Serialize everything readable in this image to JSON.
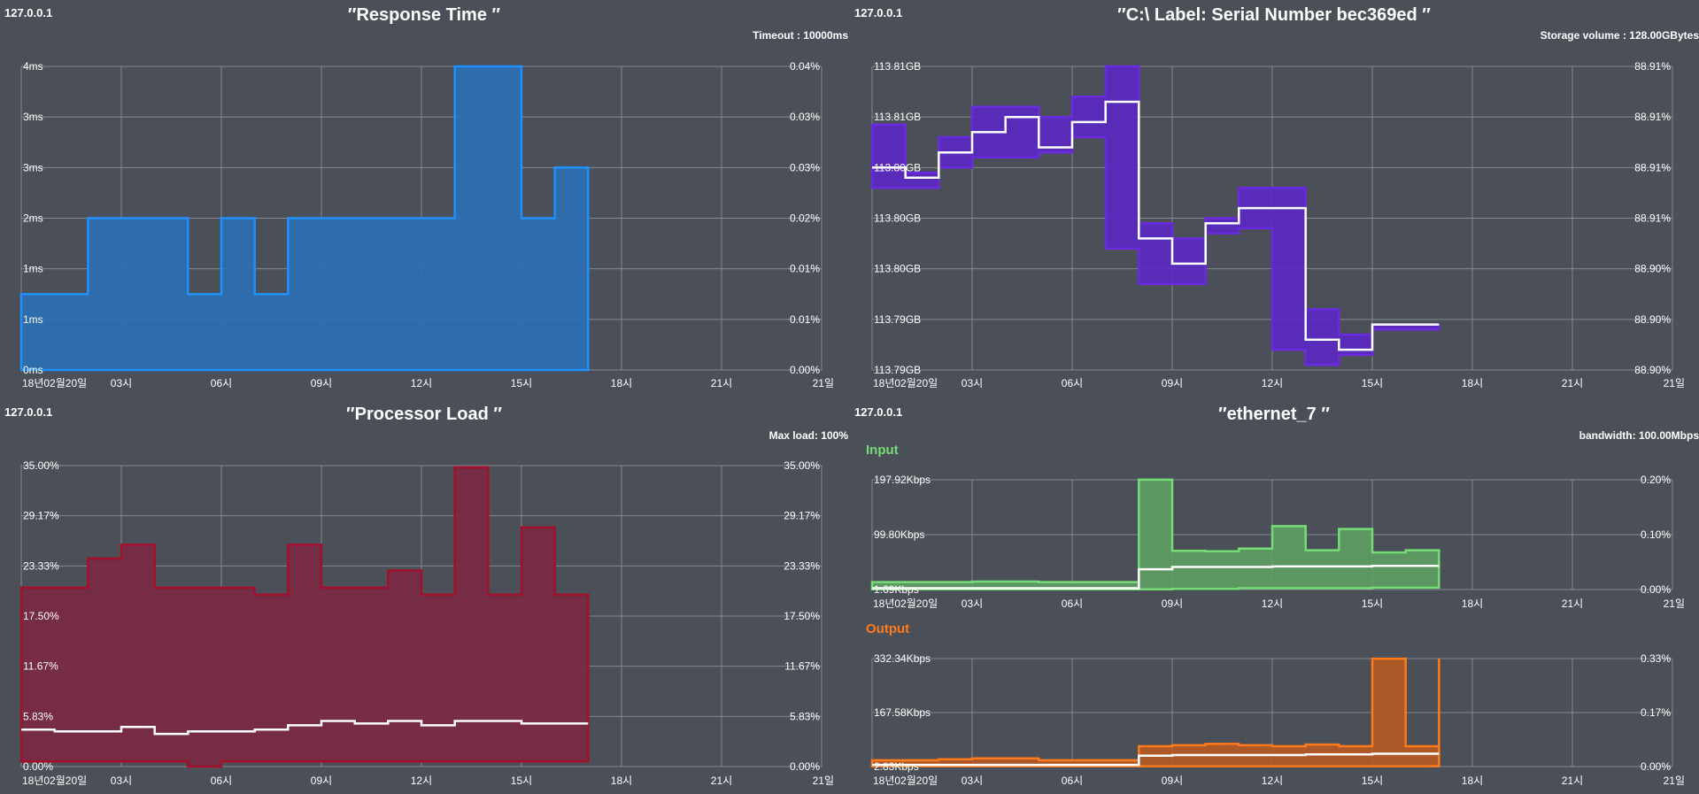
{
  "panels": [
    {
      "id": "response-time",
      "host": "127.0.0.1",
      "title": "″Response Time ″",
      "info": "Timeout : 10000ms",
      "chart_data": {
        "type": "area",
        "step": true,
        "x_tick_labels": [
          "18년02월20일",
          "03시",
          "06시",
          "09시",
          "12시",
          "15시",
          "18시",
          "21시",
          "21일"
        ],
        "xlim": [
          0,
          24
        ],
        "y_tick_labels": [
          "0ms",
          "1ms",
          "1ms",
          "2ms",
          "3ms",
          "3ms",
          "4ms"
        ],
        "ylim": [
          0,
          6
        ],
        "y2_tick_labels": [
          "0.00%",
          "0.01%",
          "0.01%",
          "0.02%",
          "0.03%",
          "0.03%",
          "0.04%"
        ],
        "colors": {
          "line": "#1e90ff",
          "fill": "#2c6fb5"
        },
        "series": [
          {
            "role": "range",
            "x": [
              0,
              2,
              4,
              5,
              6,
              7,
              8,
              9,
              10,
              11,
              12,
              13,
              14,
              15,
              16,
              17
            ],
            "upper": [
              1.5,
              3,
              3,
              1.5,
              3,
              1.5,
              3,
              3,
              3,
              3,
              3,
              6,
              6,
              3,
              4,
              3
            ],
            "lower": [
              0,
              0,
              0,
              0,
              0,
              0,
              0,
              0,
              0,
              0,
              0,
              0,
              0,
              0,
              0,
              0
            ]
          }
        ]
      }
    },
    {
      "id": "disk",
      "host": "127.0.0.1",
      "title": "″C:\\ Label: Serial Number bec369ed ″",
      "info": "Storage volume : 128.00GBytes",
      "chart_data": {
        "type": "area",
        "step": true,
        "x_tick_labels": [
          "18년02월20일",
          "03시",
          "06시",
          "09시",
          "12시",
          "15시",
          "18시",
          "21시",
          "21일"
        ],
        "xlim": [
          0,
          24
        ],
        "y_tick_labels": [
          "113.79GB",
          "113.79GB",
          "113.80GB",
          "113.80GB",
          "113.80GB",
          "113.81GB",
          "113.81GB"
        ],
        "ylim": [
          0,
          6
        ],
        "y2_tick_labels": [
          "88.90%",
          "88.90%",
          "88.90%",
          "88.91%",
          "88.91%",
          "88.91%",
          "88.91%"
        ],
        "colors": {
          "line": "#6a2be0",
          "fill": "#5a27c4",
          "avg": "#ffffff"
        },
        "series": [
          {
            "role": "range",
            "x": [
              0,
              1,
              2,
              3,
              4,
              5,
              6,
              7,
              8,
              9,
              10,
              11,
              12,
              13,
              14,
              15,
              16,
              17
            ],
            "upper": [
              4.85,
              3.9,
              4.6,
              5.2,
              5.2,
              5.0,
              5.4,
              6.0,
              2.9,
              2.6,
              3.0,
              3.6,
              3.6,
              1.2,
              0.7,
              0.9,
              0.9,
              0.9
            ],
            "lower": [
              3.6,
              3.6,
              4.0,
              4.2,
              4.2,
              4.3,
              4.6,
              2.4,
              1.7,
              1.7,
              2.7,
              2.8,
              0.4,
              0.1,
              0.3,
              0.8,
              0.8,
              0.8
            ]
          },
          {
            "role": "average",
            "x": [
              0,
              1,
              2,
              3,
              4,
              5,
              6,
              7,
              8,
              9,
              10,
              11,
              12,
              13,
              14,
              15,
              16,
              17
            ],
            "values": [
              4.0,
              3.8,
              4.3,
              4.7,
              5.0,
              4.4,
              4.9,
              5.3,
              2.6,
              2.1,
              2.9,
              3.2,
              3.2,
              0.6,
              0.4,
              0.9,
              0.9,
              0.9
            ]
          }
        ]
      }
    },
    {
      "id": "processor-load",
      "host": "127.0.0.1",
      "title": "″Processor Load ″",
      "info": "Max load: 100%",
      "chart_data": {
        "type": "area",
        "step": true,
        "x_tick_labels": [
          "18년02월20일",
          "03시",
          "06시",
          "09시",
          "12시",
          "15시",
          "18시",
          "21시",
          "21일"
        ],
        "xlim": [
          0,
          24
        ],
        "y_tick_labels": [
          "0.00%",
          "5.83%",
          "11.67%",
          "17.50%",
          "23.33%",
          "29.17%",
          "35.00%"
        ],
        "ylim": [
          0,
          35
        ],
        "y2_tick_labels": [
          "0.00%",
          "5.83%",
          "11.67%",
          "17.50%",
          "23.33%",
          "29.17%",
          "35.00%"
        ],
        "colors": {
          "line": "#a3102c",
          "fill": "#7a2842",
          "avg": "#ffffff"
        },
        "series": [
          {
            "role": "range",
            "x": [
              0,
              1,
              2,
              3,
              4,
              5,
              6,
              7,
              8,
              9,
              10,
              11,
              12,
              13,
              14,
              15,
              16,
              17
            ],
            "upper": [
              20.8,
              20.8,
              24.2,
              25.8,
              20.8,
              20.8,
              20.8,
              20.0,
              25.8,
              20.8,
              20.8,
              22.8,
              20.0,
              34.8,
              20.0,
              27.8,
              20.0,
              20.0
            ],
            "lower": [
              0.6,
              0.6,
              0.6,
              0.6,
              0.6,
              0.0,
              0.6,
              0.6,
              0.6,
              0.6,
              0.6,
              0.6,
              0.6,
              0.6,
              0.6,
              0.6,
              0.6,
              0.6
            ]
          },
          {
            "role": "average",
            "x": [
              0,
              1,
              2,
              3,
              4,
              5,
              6,
              7,
              8,
              9,
              10,
              11,
              12,
              13,
              14,
              15,
              16,
              17
            ],
            "values": [
              4.3,
              4.1,
              4.1,
              4.6,
              3.8,
              4.1,
              4.1,
              4.3,
              4.8,
              5.3,
              5.0,
              5.3,
              4.8,
              5.3,
              5.3,
              5.0,
              5.0,
              5.0
            ]
          }
        ]
      }
    },
    {
      "id": "network",
      "host": "127.0.0.1",
      "title": "″ethernet_7 ″",
      "info": "bandwidth: 100.00Mbps",
      "charts": [
        {
          "sublabel": "Input",
          "chart_data": {
            "type": "area",
            "step": true,
            "x_tick_labels": [
              "18년02월20일",
              "03시",
              "06시",
              "09시",
              "12시",
              "15시",
              "18시",
              "21시",
              "21일"
            ],
            "xlim": [
              0,
              24
            ],
            "y_tick_labels": [
              "1.69Kbps",
              "99.80Kbps",
              "197.92Kbps"
            ],
            "ylim": [
              1.69,
              197.92
            ],
            "y2_tick_labels": [
              "0.00%",
              "0.10%",
              "0.20%"
            ],
            "colors": {
              "line": "#76dd76",
              "fill": "#5e9e63",
              "avg": "#ffffff"
            },
            "series": [
              {
                "role": "range",
                "x": [
                  0,
                  1,
                  2,
                  3,
                  4,
                  5,
                  6,
                  7,
                  8,
                  9,
                  10,
                  11,
                  12,
                  13,
                  14,
                  15,
                  16,
                  17
                ],
                "upper": [
                  15,
                  15,
                  15,
                  16,
                  16,
                  15,
                  15,
                  15,
                  198,
                  71,
                  70,
                  75,
                  115,
                  72,
                  110,
                  68,
                  72,
                  72
                ],
                "lower": [
                  2,
                  2,
                  2,
                  2,
                  2,
                  2,
                  2,
                  2,
                  2,
                  3,
                  3,
                  4,
                  4,
                  4,
                  4,
                  5,
                  5,
                  5
                ]
              },
              {
                "role": "average",
                "x": [
                  0,
                  1,
                  2,
                  3,
                  4,
                  5,
                  6,
                  7,
                  8,
                  9,
                  10,
                  11,
                  12,
                  13,
                  14,
                  15,
                  16,
                  17
                ],
                "values": [
                  4,
                  4,
                  4,
                  4,
                  4,
                  4,
                  4,
                  4,
                  38,
                  42,
                  42,
                  42,
                  43,
                  43,
                  43,
                  44,
                  44,
                  44
                ]
              }
            ]
          }
        },
        {
          "sublabel": "Output",
          "chart_data": {
            "type": "area",
            "step": true,
            "x_tick_labels": [
              "18년02월20일",
              "03시",
              "06시",
              "09시",
              "12시",
              "15시",
              "18시",
              "21시",
              "21일"
            ],
            "xlim": [
              0,
              24
            ],
            "y_tick_labels": [
              "2.83Kbps",
              "167.58Kbps",
              "332.34Kbps"
            ],
            "ylim": [
              2.83,
              332.34
            ],
            "y2_tick_labels": [
              "0.00%",
              "0.17%",
              "0.33%"
            ],
            "colors": {
              "line": "#ff7a1a",
              "fill": "#b85a22",
              "avg": "#ffffff"
            },
            "series": [
              {
                "role": "range",
                "x": [
                  0,
                  1,
                  2,
                  3,
                  4,
                  5,
                  6,
                  7,
                  8,
                  9,
                  10,
                  11,
                  12,
                  13,
                  14,
                  15,
                  16,
                  17
                ],
                "upper": [
                  22,
                  22,
                  25,
                  28,
                  28,
                  22,
                  22,
                  22,
                  65,
                  68,
                  72,
                  68,
                  65,
                  70,
                  65,
                  332,
                  65,
                  332
                ],
                "lower": [
                  4,
                  4,
                  4,
                  4,
                  4,
                  4,
                  4,
                  4,
                  4,
                  4,
                  4,
                  4,
                  4,
                  4,
                  4,
                  4,
                  4,
                  4
                ]
              },
              {
                "role": "average",
                "x": [
                  0,
                  1,
                  2,
                  3,
                  4,
                  5,
                  6,
                  7,
                  8,
                  9,
                  10,
                  11,
                  12,
                  13,
                  14,
                  15,
                  16,
                  17
                ],
                "values": [
                  8,
                  8,
                  8,
                  8,
                  8,
                  8,
                  8,
                  8,
                  36,
                  38,
                  38,
                  38,
                  38,
                  40,
                  40,
                  42,
                  42,
                  42
                ]
              }
            ]
          }
        }
      ]
    }
  ]
}
